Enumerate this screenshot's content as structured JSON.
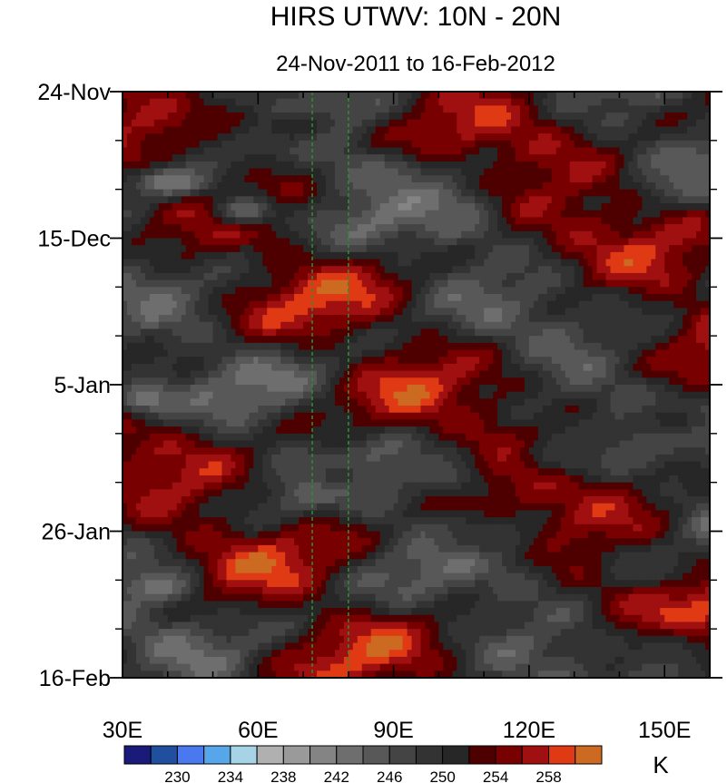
{
  "chart_data": {
    "type": "heatmap",
    "title": "HIRS UTWV: 10N - 20N",
    "subtitle": "24-Nov-2011 to 16-Feb-2012",
    "xlabel": "",
    "ylabel": "",
    "x_range": [
      30,
      160
    ],
    "x_ticks": [
      {
        "value": 30,
        "label": "30E"
      },
      {
        "value": 60,
        "label": "60E"
      },
      {
        "value": 90,
        "label": "90E"
      },
      {
        "value": 120,
        "label": "120E"
      },
      {
        "value": 150,
        "label": "150E"
      }
    ],
    "y_range_days": [
      0,
      84
    ],
    "y_ticks": [
      {
        "day": 0,
        "label": "24-Nov"
      },
      {
        "day": 21,
        "label": "15-Dec"
      },
      {
        "day": 42,
        "label": "5-Jan"
      },
      {
        "day": 63,
        "label": "26-Jan"
      },
      {
        "day": 84,
        "label": "16-Feb"
      }
    ],
    "reference_lines_lon": [
      72,
      80
    ],
    "reference_line_color": "#2e8b2e",
    "colorbar": {
      "unit": "K",
      "levels": [
        228,
        230,
        232,
        234,
        236,
        238,
        240,
        242,
        244,
        246,
        248,
        250,
        252,
        254,
        256,
        258,
        260
      ],
      "labels": [
        "230",
        "234",
        "238",
        "242",
        "246",
        "250",
        "254",
        "258"
      ],
      "label_levels": [
        230,
        234,
        238,
        242,
        246,
        250,
        254,
        258
      ],
      "colors": [
        "#1a1a7a",
        "#1f4f9e",
        "#4a78ee",
        "#58a6ea",
        "#a6d4e6",
        "#b0b0b0",
        "#9a9a9a",
        "#848484",
        "#6e6e6e",
        "#585858",
        "#444444",
        "#333333",
        "#272727",
        "#4e0000",
        "#780000",
        "#a01010",
        "#e03a14",
        "#cc6a22"
      ]
    },
    "features": [
      {
        "lon": 53,
        "day": 4,
        "value": 253,
        "sx": 9,
        "sy": 2.5
      },
      {
        "lon": 68,
        "day": 5,
        "value": 252,
        "sx": 10,
        "sy": 3
      },
      {
        "lon": 41,
        "day": 13,
        "value": 242,
        "sx": 10,
        "sy": 2.5
      },
      {
        "lon": 57,
        "day": 17,
        "value": 244,
        "sx": 8,
        "sy": 2.5
      },
      {
        "lon": 85,
        "day": 12,
        "value": 245,
        "sx": 12,
        "sy": 3
      },
      {
        "lon": 103,
        "day": 18,
        "value": 244,
        "sx": 8,
        "sy": 3
      },
      {
        "lon": 35,
        "day": 44,
        "value": 243,
        "sx": 8,
        "sy": 2.5
      },
      {
        "lon": 78,
        "day": 55,
        "value": 249,
        "sx": 10,
        "sy": 3
      },
      {
        "lon": 130,
        "day": 52,
        "value": 248,
        "sx": 12,
        "sy": 3
      },
      {
        "lon": 152,
        "day": 47,
        "value": 251,
        "sx": 10,
        "sy": 3
      },
      {
        "lon": 110,
        "day": 64,
        "value": 249,
        "sx": 12,
        "sy": 3
      },
      {
        "lon": 145,
        "day": 68,
        "value": 248,
        "sx": 10,
        "sy": 3
      },
      {
        "lon": 38,
        "day": 71,
        "value": 243,
        "sx": 8,
        "sy": 2.5
      },
      {
        "lon": 155,
        "day": 12,
        "value": 246,
        "sx": 8,
        "sy": 3
      },
      {
        "lon": 143,
        "day": 33,
        "value": 250,
        "sx": 8,
        "sy": 3
      },
      {
        "lon": 150,
        "day": 80,
        "value": 249,
        "sx": 8,
        "sy": 3
      },
      {
        "lon": 100,
        "day": 55,
        "value": 247,
        "sx": 10,
        "sy": 3
      }
    ]
  }
}
